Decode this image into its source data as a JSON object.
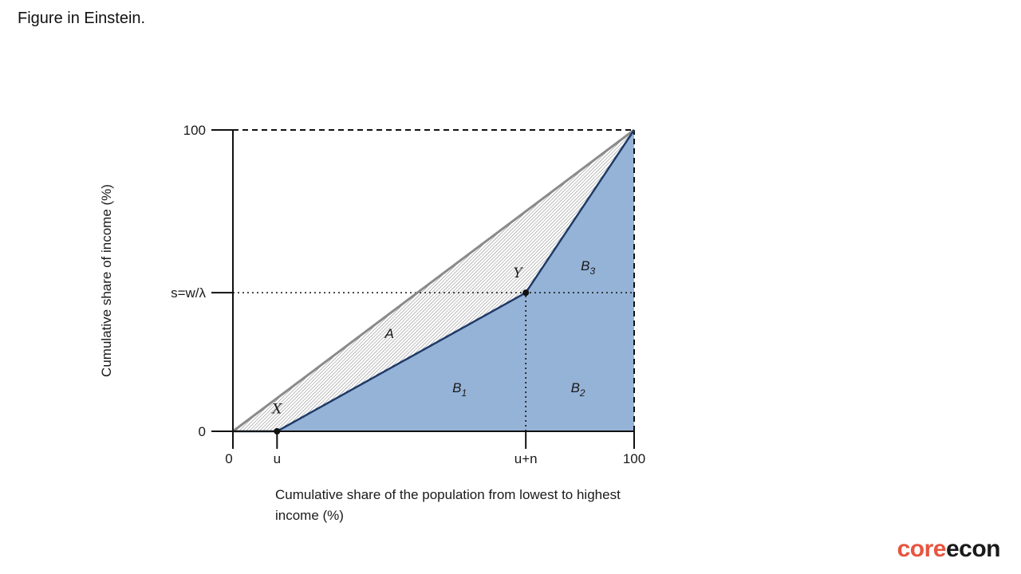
{
  "slide": {
    "title": "Figure in Einstein."
  },
  "logo": {
    "part1": "core",
    "part2": "econ"
  },
  "colors": {
    "fill": "#95b3d7",
    "curve": "#1f3a68",
    "equality": "#8a8a8a",
    "axis": "#111111"
  },
  "chart_data": {
    "type": "area",
    "title": "",
    "xlabel": "Cumulative share of the population from lowest to highest income (%)",
    "ylabel": "Cumulative share of income (%)",
    "xlim": [
      0,
      100
    ],
    "ylim": [
      0,
      100
    ],
    "grid": false,
    "equality_line": [
      [
        0,
        0
      ],
      [
        100,
        100
      ]
    ],
    "lorenz_curve": {
      "name": "",
      "points": [
        [
          0,
          0
        ],
        [
          11,
          0
        ],
        [
          73,
          46
        ],
        [
          100,
          100
        ]
      ]
    },
    "x_ticks": [
      {
        "value": 0,
        "label": "0"
      },
      {
        "value": 11,
        "label": "u"
      },
      {
        "value": 73,
        "label": "u+n"
      },
      {
        "value": 100,
        "label": "100"
      }
    ],
    "y_ticks": [
      {
        "value": 0,
        "label": "0"
      },
      {
        "value": 46,
        "label": "s=w/λ"
      },
      {
        "value": 100,
        "label": "100"
      }
    ],
    "points": [
      {
        "label": "X",
        "x": 11,
        "y": 0,
        "label_pos": [
          11,
          6
        ]
      },
      {
        "label": "Y",
        "x": 73,
        "y": 46,
        "label_pos": [
          71,
          51
        ]
      }
    ],
    "region_labels": [
      {
        "label": "A",
        "x": 39,
        "y": 31
      },
      {
        "label": "B",
        "sub": "1",
        "x": 56.5,
        "y": 13
      },
      {
        "label": "B",
        "sub": "2",
        "x": 86,
        "y": 13
      },
      {
        "label": "B",
        "sub": "3",
        "x": 88.5,
        "y": 53.5
      }
    ],
    "reference_lines": [
      {
        "from": [
          0,
          46
        ],
        "to": [
          100,
          46
        ],
        "style": "dotted"
      },
      {
        "from": [
          73,
          0
        ],
        "to": [
          73,
          46
        ],
        "style": "dotted"
      },
      {
        "from": [
          0,
          100
        ],
        "to": [
          100,
          100
        ],
        "style": "dashed"
      },
      {
        "from": [
          100,
          0
        ],
        "to": [
          100,
          100
        ],
        "style": "dashed"
      }
    ]
  }
}
